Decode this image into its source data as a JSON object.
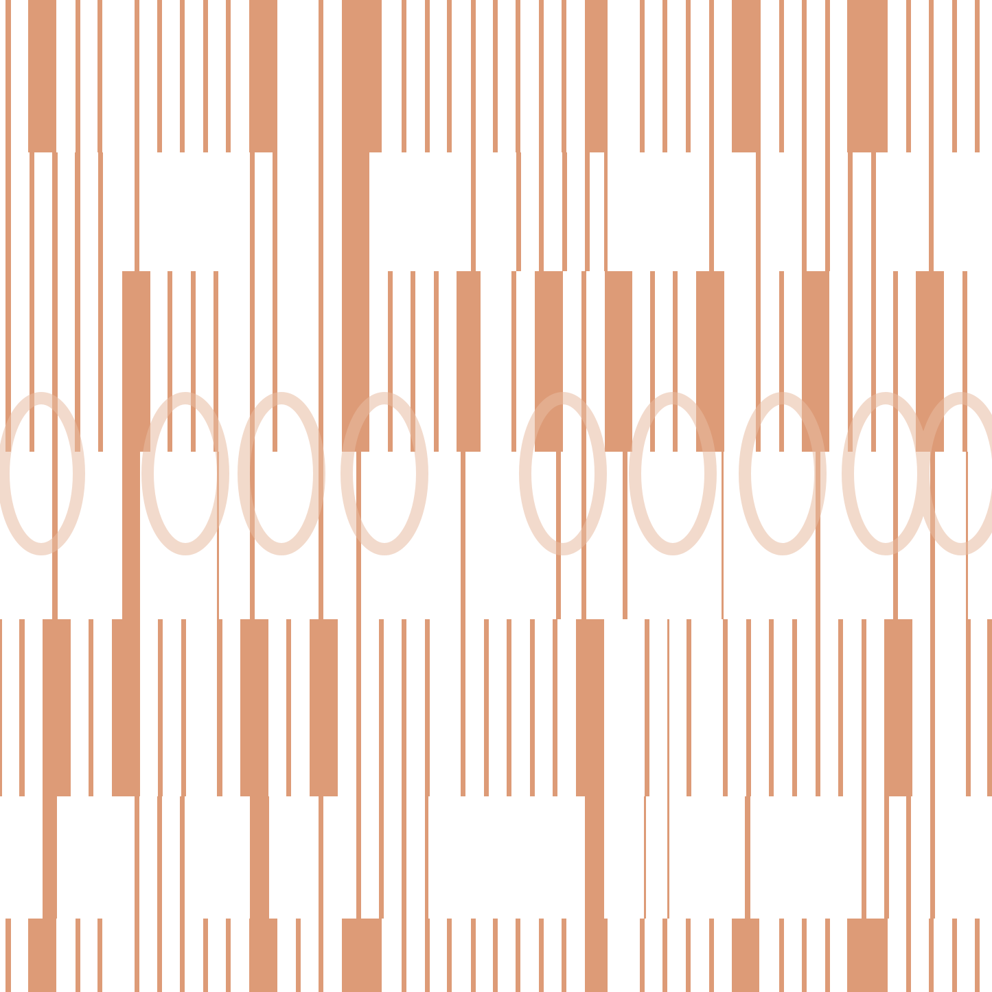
{
  "pattern": {
    "type": "vertical-stripe-seamless-pattern",
    "colors": {
      "stripe": "#dd9b77",
      "background": "#ffffff",
      "watermark": "#e8bca2"
    }
  }
}
